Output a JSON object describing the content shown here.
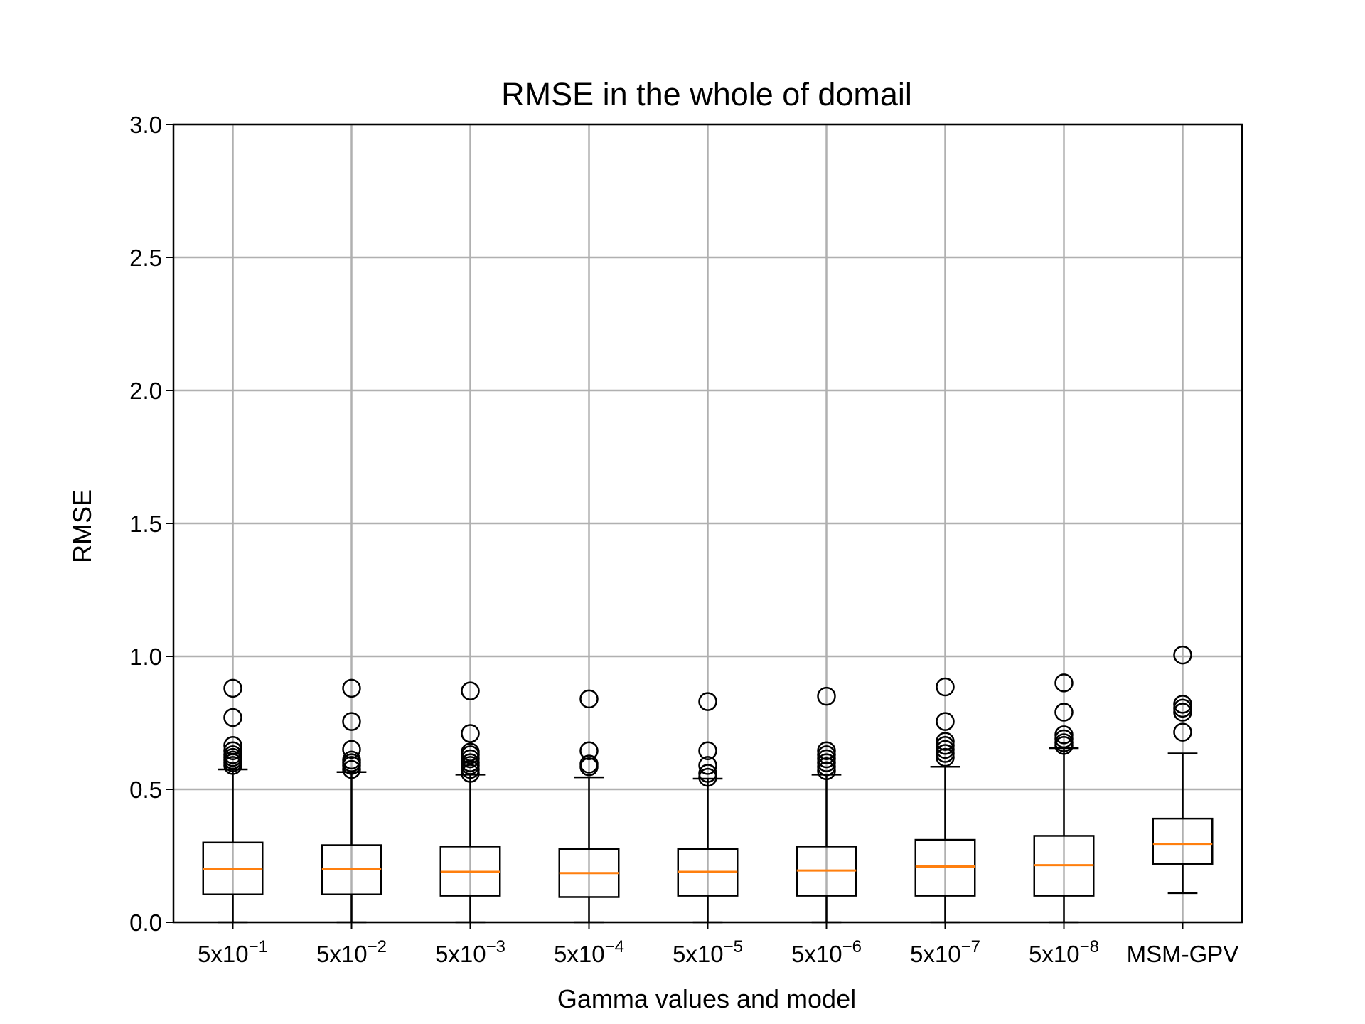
{
  "chart_data": {
    "type": "box",
    "title": "RMSE in the whole of domail",
    "xlabel": "Gamma values and model",
    "ylabel": "RMSE",
    "ylim": [
      0,
      3.0
    ],
    "yticks": [
      0.0,
      0.5,
      1.0,
      1.5,
      2.0,
      2.5,
      3.0
    ],
    "ytick_labels": [
      "0.0",
      "0.5",
      "1.0",
      "1.5",
      "2.0",
      "2.5",
      "3.0"
    ],
    "grid": true,
    "categories": [
      {
        "base": "5x10",
        "exp": "−1"
      },
      {
        "base": "5x10",
        "exp": "−2"
      },
      {
        "base": "5x10",
        "exp": "−3"
      },
      {
        "base": "5x10",
        "exp": "−4"
      },
      {
        "base": "5x10",
        "exp": "−5"
      },
      {
        "base": "5x10",
        "exp": "−6"
      },
      {
        "base": "5x10",
        "exp": "−7"
      },
      {
        "base": "5x10",
        "exp": "−8"
      },
      {
        "base": "MSM-GPV",
        "exp": ""
      }
    ],
    "boxes": [
      {
        "whislo": 0.0,
        "q1": 0.105,
        "med": 0.2,
        "q3": 0.3,
        "whishi": 0.575,
        "fliers": [
          0.59,
          0.6,
          0.61,
          0.62,
          0.63,
          0.645,
          0.665,
          0.77,
          0.88
        ]
      },
      {
        "whislo": 0.0,
        "q1": 0.105,
        "med": 0.2,
        "q3": 0.29,
        "whishi": 0.565,
        "fliers": [
          0.575,
          0.59,
          0.6,
          0.61,
          0.65,
          0.755,
          0.88
        ]
      },
      {
        "whislo": 0.0,
        "q1": 0.1,
        "med": 0.19,
        "q3": 0.285,
        "whishi": 0.555,
        "fliers": [
          0.56,
          0.575,
          0.59,
          0.6,
          0.615,
          0.63,
          0.64,
          0.71,
          0.87
        ]
      },
      {
        "whislo": 0.0,
        "q1": 0.095,
        "med": 0.185,
        "q3": 0.275,
        "whishi": 0.545,
        "fliers": [
          0.585,
          0.595,
          0.645,
          0.84
        ]
      },
      {
        "whislo": 0.0,
        "q1": 0.1,
        "med": 0.19,
        "q3": 0.275,
        "whishi": 0.54,
        "fliers": [
          0.545,
          0.56,
          0.59,
          0.645,
          0.83
        ]
      },
      {
        "whislo": 0.0,
        "q1": 0.1,
        "med": 0.195,
        "q3": 0.285,
        "whishi": 0.555,
        "fliers": [
          0.57,
          0.585,
          0.6,
          0.615,
          0.63,
          0.645,
          0.85
        ]
      },
      {
        "whislo": 0.0,
        "q1": 0.1,
        "med": 0.21,
        "q3": 0.31,
        "whishi": 0.585,
        "fliers": [
          0.62,
          0.635,
          0.65,
          0.665,
          0.68,
          0.755,
          0.885
        ]
      },
      {
        "whislo": 0.0,
        "q1": 0.1,
        "med": 0.215,
        "q3": 0.325,
        "whishi": 0.655,
        "fliers": [
          0.665,
          0.675,
          0.69,
          0.705,
          0.79,
          0.9
        ]
      },
      {
        "whislo": 0.11,
        "q1": 0.22,
        "med": 0.295,
        "q3": 0.39,
        "whishi": 0.635,
        "fliers": [
          0.715,
          0.79,
          0.805,
          0.82,
          1.005
        ]
      }
    ],
    "colors": {
      "median": "#ff7f0e",
      "box": "#000000",
      "grid": "#b0b0b0"
    }
  }
}
